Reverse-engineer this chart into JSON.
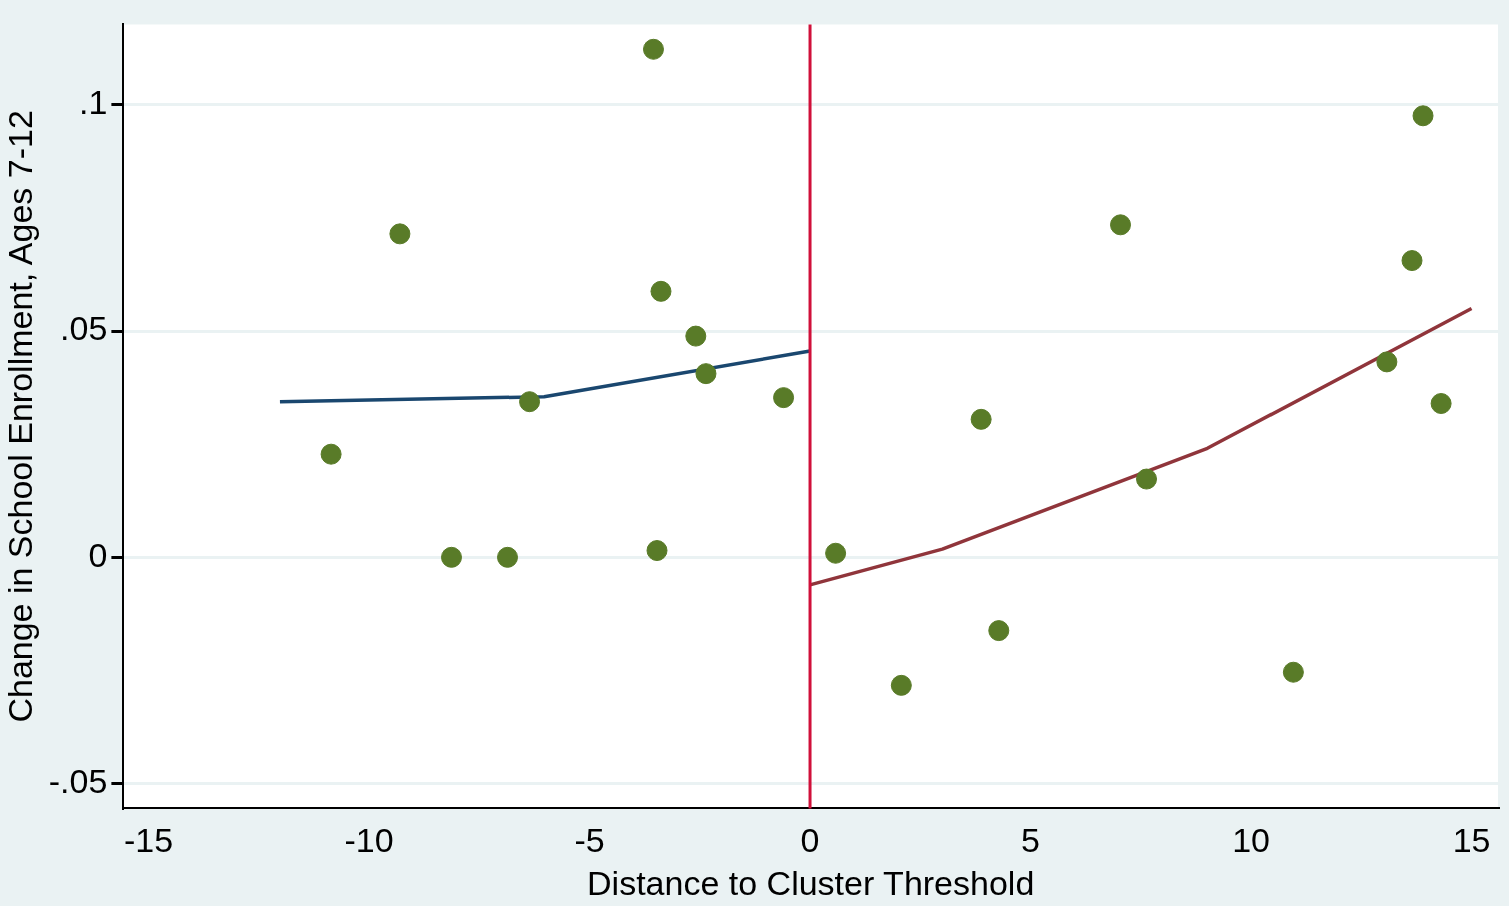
{
  "chart_data": {
    "type": "scatter",
    "xlabel": "Distance to Cluster Threshold",
    "ylabel": "Change in School Enrollment, Ages 7-12",
    "xlim": [
      -15.57,
      15.6
    ],
    "ylim": [
      -0.0555,
      0.1178
    ],
    "xticks": [
      -15,
      -10,
      -5,
      0,
      5,
      10,
      15
    ],
    "yticks": [
      {
        "value": -0.05,
        "label": "-.05"
      },
      0,
      {
        "value": 0.05,
        "label": ".05"
      },
      {
        "value": 0.1,
        "label": ".1"
      }
    ],
    "grid": "y",
    "legend": false,
    "ref_lines": [
      {
        "axis": "x",
        "value": 0,
        "color": "#d0103a"
      }
    ],
    "series": [
      {
        "marker": "circle",
        "color": "#597b28",
        "x": [
          -3.55,
          -9.3,
          -10.86,
          -8.13,
          -6.86,
          -6.36,
          -3.38,
          -2.59,
          -2.36,
          -3.47,
          -0.6,
          0.58,
          2.07,
          3.88,
          4.28,
          7.04,
          7.63,
          10.96,
          13.08,
          13.65,
          13.9,
          14.31
        ],
        "values": [
          0.1123,
          0.0715,
          0.0228,
          0,
          0,
          0.0344,
          0.0588,
          0.0489,
          0.0406,
          0.0015,
          0.0353,
          0.0009,
          -0.0283,
          0.0305,
          -0.0162,
          0.0735,
          0.0173,
          -0.0254,
          0.0432,
          0.0656,
          0.0976,
          0.034
        ]
      },
      {
        "type": "line",
        "marker": "none",
        "color": "#1a476f",
        "x": [
          -12.02,
          -6.03,
          0
        ],
        "values": [
          0.0344,
          0.0355,
          0.0456
        ]
      },
      {
        "type": "line",
        "marker": "none",
        "color": "#90353b",
        "x": [
          0,
          3,
          9.01,
          15
        ],
        "values": [
          -0.0061,
          0.0018,
          0.0241,
          0.055
        ]
      }
    ]
  }
}
